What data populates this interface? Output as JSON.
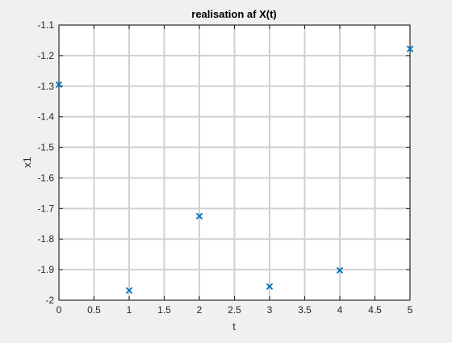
{
  "chart_data": {
    "type": "scatter",
    "title": "realisation af X(t)",
    "xlabel": "t",
    "ylabel": "x1",
    "xlim": [
      0,
      5
    ],
    "ylim": [
      -2,
      -1.1
    ],
    "grid": true,
    "x_ticks": [
      "0",
      "0.5",
      "1",
      "1.5",
      "2",
      "2.5",
      "3",
      "3.5",
      "4",
      "4.5",
      "5"
    ],
    "y_ticks": [
      "-1.1",
      "-1.2",
      "-1.3",
      "-1.4",
      "-1.5",
      "-1.6",
      "-1.7",
      "-1.8",
      "-1.9",
      "-2"
    ],
    "marker": "x",
    "series": [
      {
        "x": [
          0,
          1,
          2,
          3,
          4,
          5
        ],
        "y": [
          -1.295,
          -1.968,
          -1.725,
          -1.955,
          -1.902,
          -1.178
        ]
      }
    ]
  },
  "colors": {
    "figure_background": "#f0f0f0",
    "axes_background": "#ffffff",
    "grid": "#d0d0d0",
    "axes_line": "#262626",
    "marker": "#0072bd"
  }
}
